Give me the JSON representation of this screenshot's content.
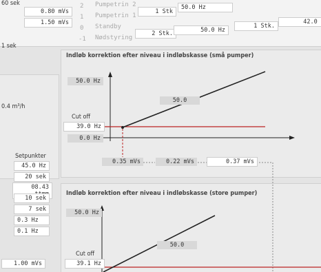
{
  "top": {
    "left_values": [
      "60 sek",
      "0.80 mVs",
      "1.50 mVs",
      "1 sek"
    ],
    "modes": [
      [
        "2",
        "Pumpetrin 2"
      ],
      [
        "1",
        "Pumpetrin 1"
      ],
      [
        "0",
        "Standby"
      ],
      [
        "-1",
        "Nødstyring"
      ]
    ],
    "row1": [
      "1 Stk",
      "50.0 Hz"
    ],
    "row2": [
      "2 Stk.",
      "50.0 Hz",
      "1 Stk.",
      "42.0 H"
    ]
  },
  "left_panel": {
    "flow": "0.4 m³/h",
    "setpoints_title": "Setpunkter",
    "setpoints": [
      "45.0 Hz",
      "20 sek",
      "08.43 ttmm",
      "10 sek",
      "7 sek",
      "0.3 Hz",
      "0.1 Hz"
    ],
    "bottom": "1.00 mVs"
  },
  "panel_small": {
    "title": "Indløb korrektion efter niveau i indløbskasse (små pumper)",
    "max": "50.0 Hz",
    "point": "50.0",
    "cutoff_label": "Cut off",
    "cutoff": "39.0 Hz",
    "min": "0.0 Hz",
    "x_values": [
      "0.35 mVs",
      "0.22 mVs",
      "0.37 mVs"
    ]
  },
  "panel_large": {
    "title": "Indløb korrektion efter niveau i indløbskasse (store pumper)",
    "max": "50.0 Hz",
    "point": "50.0",
    "cutoff_label": "Cut off",
    "cutoff": "39.1 Hz"
  }
}
